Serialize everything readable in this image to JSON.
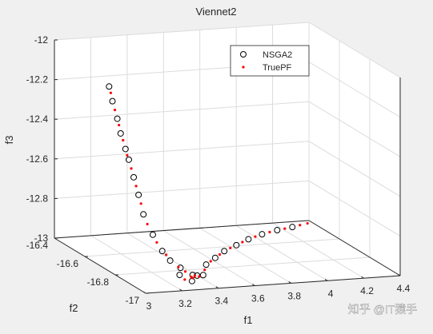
{
  "chart_data": {
    "type": "scatter3",
    "title": "Viennet2",
    "xlabel": "f1",
    "ylabel": "f2",
    "zlabel": "f3",
    "xlim": [
      3,
      4.4
    ],
    "ylim": [
      -17,
      -16.4
    ],
    "zlim": [
      -13,
      -12
    ],
    "xticks": [
      3,
      3.2,
      3.4,
      3.6,
      3.8,
      4,
      4.2,
      4.4
    ],
    "yticks": [
      -17,
      -16.8,
      -16.6,
      -16.4
    ],
    "zticks": [
      -13,
      -12.8,
      -12.6,
      -12.4,
      -12.2,
      -12
    ],
    "grid": true,
    "legend": "northeast",
    "watermark": "知乎 @IT猿手",
    "series": [
      {
        "name": "NSGA2",
        "color": "#000000",
        "marker": "circle",
        "x": [
          3.1,
          3.11,
          3.12,
          3.13,
          3.14,
          3.15,
          3.16,
          3.17,
          3.18,
          3.19,
          3.2,
          3.21,
          3.25,
          3.3,
          3.22,
          3.35,
          3.28,
          3.4,
          3.5,
          3.6,
          3.7,
          3.8,
          3.9,
          4.0,
          4.1,
          4.2
        ],
        "y": [
          -16.64,
          -16.65,
          -16.67,
          -16.68,
          -16.7,
          -16.71,
          -16.73,
          -16.75,
          -16.77,
          -16.82,
          -16.87,
          -16.91,
          -16.93,
          -16.95,
          -16.96,
          -16.92,
          -16.97,
          -16.9,
          -16.8,
          -16.74,
          -16.68,
          -16.64,
          -16.6,
          -16.57,
          -16.55,
          -16.53
        ],
        "z": [
          -12.13,
          -12.2,
          -12.28,
          -12.35,
          -12.42,
          -12.47,
          -12.55,
          -12.63,
          -12.72,
          -12.8,
          -12.86,
          -12.89,
          -12.92,
          -12.95,
          -12.94,
          -12.97,
          -12.97,
          -12.98,
          -12.98,
          -12.98,
          -12.98,
          -12.975,
          -12.97,
          -12.965,
          -12.96,
          -12.96
        ]
      },
      {
        "name": "TruePF",
        "color": "#ff0000",
        "marker": "dot",
        "x": [
          3.105,
          3.115,
          3.125,
          3.135,
          3.145,
          3.155,
          3.165,
          3.175,
          3.185,
          3.195,
          3.205,
          3.23,
          3.26,
          3.29,
          3.32,
          3.24,
          3.31,
          3.37,
          3.45,
          3.55,
          3.65,
          3.75,
          3.85,
          3.95,
          4.05,
          4.15,
          4.25,
          4.3
        ],
        "y": [
          -16.645,
          -16.66,
          -16.675,
          -16.69,
          -16.705,
          -16.72,
          -16.74,
          -16.76,
          -16.79,
          -16.84,
          -16.89,
          -16.94,
          -16.95,
          -16.96,
          -16.94,
          -16.97,
          -16.93,
          -16.91,
          -16.85,
          -16.77,
          -16.71,
          -16.66,
          -16.62,
          -16.585,
          -16.56,
          -16.54,
          -16.52,
          -16.51
        ],
        "z": [
          -12.16,
          -12.24,
          -12.31,
          -12.38,
          -12.45,
          -12.51,
          -12.59,
          -12.67,
          -12.76,
          -12.83,
          -12.87,
          -12.91,
          -12.93,
          -12.96,
          -12.96,
          -12.96,
          -12.97,
          -12.98,
          -12.98,
          -12.98,
          -12.98,
          -12.977,
          -12.972,
          -12.967,
          -12.962,
          -12.96,
          -12.958,
          -12.957
        ]
      }
    ]
  }
}
